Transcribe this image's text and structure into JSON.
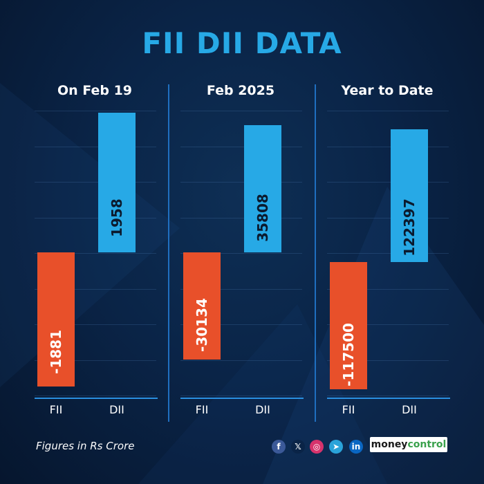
{
  "chart_data": [
    {
      "type": "bar",
      "title": "On Feb 19",
      "categories": [
        "FII",
        "DII"
      ],
      "values": [
        -1881,
        1958
      ]
    },
    {
      "type": "bar",
      "title": "Feb 2025",
      "categories": [
        "FII",
        "DII"
      ],
      "values": [
        -30134,
        35808
      ]
    },
    {
      "type": "bar",
      "title": "Year to Date",
      "categories": [
        "FII",
        "DII"
      ],
      "values": [
        -117500,
        122397
      ]
    }
  ],
  "main_title": "FII DII DATA",
  "footnote": "Figures in Rs Crore",
  "brand": {
    "part1": "money",
    "part2": "control"
  },
  "social": [
    {
      "icon": "facebook-icon",
      "glyph": "f",
      "color": "#3b5998"
    },
    {
      "icon": "x-icon",
      "glyph": "𝕏",
      "color": "#0a2447"
    },
    {
      "icon": "instagram-icon",
      "glyph": "◎",
      "color": "#d6336c"
    },
    {
      "icon": "telegram-icon",
      "glyph": "➤",
      "color": "#2aa3d9"
    },
    {
      "icon": "linkedin-icon",
      "glyph": "in",
      "color": "#0a66c2"
    }
  ],
  "colors": {
    "fii": "#e8502a",
    "dii": "#27a9e6",
    "title": "#27a9e6"
  }
}
